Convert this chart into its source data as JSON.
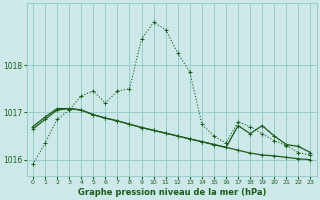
{
  "background_color": "#cce8e8",
  "grid_color": "#99cccc",
  "line_color": "#1a5c1a",
  "title": "Graphe pression niveau de la mer (hPa)",
  "xlim": [
    -0.5,
    23.5
  ],
  "ylim": [
    1015.65,
    1019.3
  ],
  "yticks": [
    1016,
    1017,
    1018
  ],
  "xticks": [
    0,
    1,
    2,
    3,
    4,
    5,
    6,
    7,
    8,
    9,
    10,
    11,
    12,
    13,
    14,
    15,
    16,
    17,
    18,
    19,
    20,
    21,
    22,
    23
  ],
  "series1": [
    1015.9,
    1016.35,
    1016.85,
    1017.05,
    1017.35,
    1017.45,
    1017.2,
    1017.45,
    1017.5,
    1018.55,
    1018.9,
    1018.75,
    1018.25,
    1017.85,
    1016.75,
    1016.5,
    1016.35,
    1016.8,
    1016.7,
    1016.55,
    1016.4,
    1016.3,
    1016.15,
    1016.1
  ],
  "series2": [
    1016.65,
    1016.85,
    1017.05,
    1017.08,
    1017.05,
    1016.95,
    1016.88,
    1016.82,
    1016.75,
    1016.68,
    1016.62,
    1016.56,
    1016.5,
    1016.44,
    1016.38,
    1016.32,
    1016.26,
    1016.2,
    1016.14,
    1016.1,
    1016.08,
    1016.05,
    1016.02,
    1016.0
  ],
  "series3": [
    1016.7,
    1016.9,
    1017.08,
    1017.08,
    1017.05,
    1016.95,
    1016.88,
    1016.82,
    1016.75,
    1016.68,
    1016.62,
    1016.56,
    1016.5,
    1016.44,
    1016.38,
    1016.32,
    1016.26,
    1016.72,
    1016.55,
    1016.72,
    1016.5,
    1016.32,
    1016.28,
    1016.15
  ],
  "marker": "+"
}
